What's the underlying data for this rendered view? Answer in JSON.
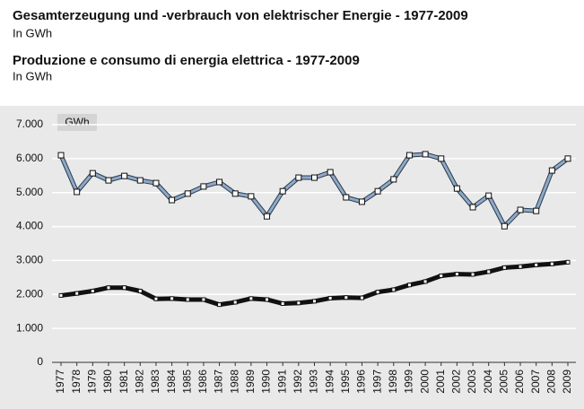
{
  "chart_data": {
    "type": "line",
    "titles": [
      "Gesamterzeugung und -verbrauch von elektrischer Energie - 1977-2009",
      "Produzione e consumo di energia elettrica - 1977-2009"
    ],
    "subtitles": [
      "In GWh",
      "In GWh"
    ],
    "unit_label": "GWh",
    "categories": [
      "1977",
      "1978",
      "1979",
      "1980",
      "1981",
      "1982",
      "1983",
      "1984",
      "1985",
      "1986",
      "1987",
      "1988",
      "1989",
      "1990",
      "1991",
      "1992",
      "1993",
      "1994",
      "1995",
      "1996",
      "1997",
      "1998",
      "1999",
      "2000",
      "2001",
      "2002",
      "2003",
      "2004",
      "2005",
      "2006",
      "2007",
      "2008",
      "2009"
    ],
    "series": [
      {
        "color": "#8fa9c8",
        "values": [
          6100,
          5020,
          5570,
          5360,
          5490,
          5360,
          5280,
          4780,
          4970,
          5180,
          5310,
          4970,
          4890,
          4300,
          5040,
          5440,
          5440,
          5600,
          4860,
          4730,
          5040,
          5390,
          6100,
          6130,
          6000,
          5120,
          4570,
          4910,
          4010,
          4490,
          4460,
          5650,
          6000
        ]
      },
      {
        "color": "#111111",
        "values": [
          1970,
          2030,
          2100,
          2200,
          2200,
          2100,
          1870,
          1880,
          1850,
          1850,
          1700,
          1770,
          1880,
          1850,
          1730,
          1750,
          1800,
          1890,
          1910,
          1900,
          2070,
          2140,
          2280,
          2380,
          2550,
          2600,
          2590,
          2670,
          2790,
          2820,
          2870,
          2900,
          2950
        ]
      }
    ],
    "ylim": [
      0,
      7000
    ],
    "yticks": [
      0,
      {
        "value": 1000,
        "label": "1.000"
      },
      {
        "value": 2000,
        "label": "2.000"
      },
      {
        "value": 3000,
        "label": "3.000"
      },
      {
        "value": 4000,
        "label": "4.000"
      },
      {
        "value": 5000,
        "label": "5.000"
      },
      {
        "value": 6000,
        "label": "6.000"
      },
      {
        "value": 7000,
        "label": "7.000"
      }
    ],
    "grid": true
  }
}
